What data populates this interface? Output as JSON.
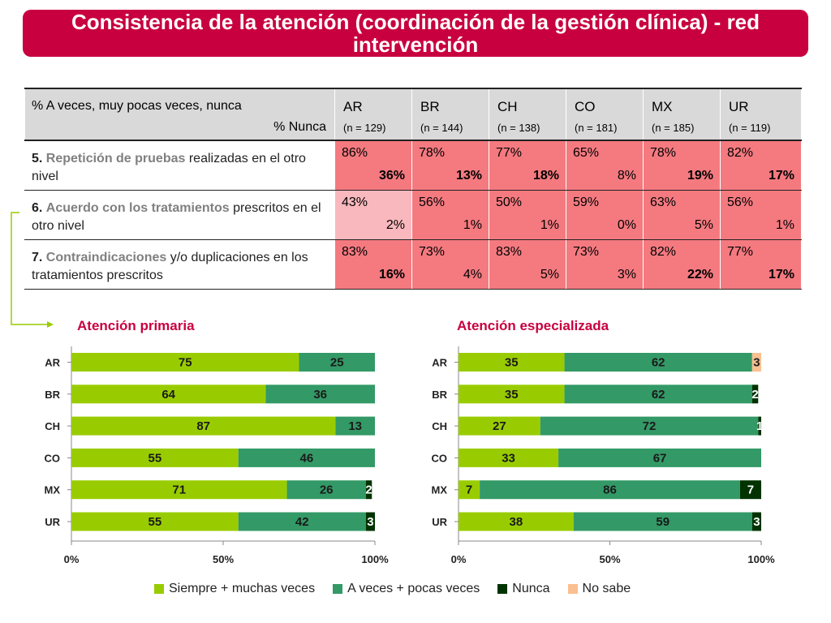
{
  "title": {
    "line1": "Consistencia de la atención (coordinación de la gestión clínica) - red",
    "line2": "intervención"
  },
  "colors": {
    "banner": "#c8003f",
    "siempre": "#99cc00",
    "aveces": "#339966",
    "nunca": "#003300",
    "nosabe": "#fac090",
    "cell_dark": "#f47a80",
    "cell_light": "#f9b8bd"
  },
  "table": {
    "header_line1": "% A veces, muy pocas veces, nunca",
    "header_line2": "% Nunca",
    "countries": [
      {
        "code": "AR",
        "n": "(n = 129)"
      },
      {
        "code": "BR",
        "n": "(n = 144)"
      },
      {
        "code": "CH",
        "n": "(n = 138)"
      },
      {
        "code": "CO",
        "n": "(n = 181)"
      },
      {
        "code": "MX",
        "n": "(n = 185)"
      },
      {
        "code": "UR",
        "n": "(n = 119)"
      }
    ],
    "rows": [
      {
        "num": "5.",
        "highlight": "Repetición de pruebas",
        "rest": " realizadas en el otro nivel",
        "cells": [
          {
            "top": "86%",
            "bottom": "36%",
            "bold": true
          },
          {
            "top": "78%",
            "bottom": "13%",
            "bold": true
          },
          {
            "top": "77%",
            "bottom": "18%",
            "bold": true
          },
          {
            "top": "65%",
            "bottom": "8%",
            "bold": false
          },
          {
            "top": "78%",
            "bottom": "19%",
            "bold": true
          },
          {
            "top": "82%",
            "bottom": "17%",
            "bold": true
          }
        ]
      },
      {
        "num": "6.",
        "highlight": "Acuerdo con los tratamientos",
        "rest": " prescritos en el otro nivel",
        "cells": [
          {
            "top": "43%",
            "bottom": "2%",
            "bold": false
          },
          {
            "top": "56%",
            "bottom": "1%",
            "bold": false
          },
          {
            "top": "50%",
            "bottom": "1%",
            "bold": false
          },
          {
            "top": "59%",
            "bottom": "0%",
            "bold": false
          },
          {
            "top": "63%",
            "bottom": "5%",
            "bold": false
          },
          {
            "top": "56%",
            "bottom": "1%",
            "bold": false
          }
        ]
      },
      {
        "num": "7.",
        "highlight": "Contraindicaciones",
        "rest": " y/o duplicaciones en los tratamientos prescritos",
        "cells": [
          {
            "top": "83%",
            "bottom": "16%",
            "bold": true
          },
          {
            "top": "73%",
            "bottom": "4%",
            "bold": false
          },
          {
            "top": "83%",
            "bottom": "5%",
            "bold": false
          },
          {
            "top": "73%",
            "bottom": "3%",
            "bold": false
          },
          {
            "top": "82%",
            "bottom": "22%",
            "bold": true
          },
          {
            "top": "77%",
            "bottom": "17%",
            "bold": true
          }
        ]
      }
    ]
  },
  "legend": {
    "siempre": "Siempre + muchas veces",
    "aveces": "A veces + pocas veces",
    "nunca": "Nunca",
    "nosabe": "No sabe"
  },
  "chart_data": [
    {
      "type": "bar",
      "orientation": "horizontal",
      "stacked": true,
      "title": "Atención primaria",
      "categories": [
        "AR",
        "BR",
        "CH",
        "CO",
        "MX",
        "UR"
      ],
      "series": [
        {
          "name": "Siempre + muchas veces",
          "values": [
            75,
            64,
            87,
            55,
            71,
            55
          ]
        },
        {
          "name": "A veces + pocas veces",
          "values": [
            25,
            36,
            13,
            46,
            26,
            42
          ]
        },
        {
          "name": "Nunca",
          "values": [
            0,
            0,
            0,
            0,
            2,
            3
          ]
        },
        {
          "name": "No sabe",
          "values": [
            0,
            0,
            0,
            0,
            0,
            0
          ]
        }
      ],
      "xticks": [
        "0%",
        "50%",
        "100%"
      ],
      "xlim": [
        0,
        100
      ]
    },
    {
      "type": "bar",
      "orientation": "horizontal",
      "stacked": true,
      "title": "Atención especializada",
      "categories": [
        "AR",
        "BR",
        "CH",
        "CO",
        "MX",
        "UR"
      ],
      "series": [
        {
          "name": "Siempre + muchas veces",
          "values": [
            35,
            35,
            27,
            33,
            7,
            38
          ]
        },
        {
          "name": "A veces + pocas veces",
          "values": [
            62,
            62,
            72,
            67,
            86,
            59
          ]
        },
        {
          "name": "Nunca",
          "values": [
            0,
            2,
            1,
            0,
            7,
            3
          ]
        },
        {
          "name": "No sabe",
          "values": [
            3,
            0,
            0,
            0,
            0,
            0
          ]
        }
      ],
      "xticks": [
        "0%",
        "50%",
        "100%"
      ],
      "xlim": [
        0,
        100
      ]
    }
  ]
}
